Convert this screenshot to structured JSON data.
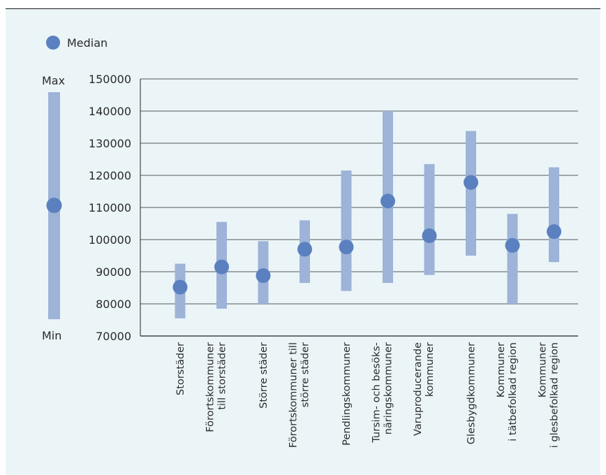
{
  "legend": {
    "median_label": "Median"
  },
  "key": {
    "max_label": "Max",
    "min_label": "Min"
  },
  "colors": {
    "background": "#ebf5f8",
    "range_bar": "#9db3d8",
    "median_dot": "#5b80bf",
    "grid": "#222222"
  },
  "chart_data": {
    "type": "range",
    "title": "",
    "xlabel": "",
    "ylabel": "",
    "ylim": [
      70000,
      150000
    ],
    "yticks": [
      70000,
      80000,
      90000,
      100000,
      110000,
      120000,
      130000,
      140000,
      150000
    ],
    "grid": true,
    "legend_position": "top-left",
    "categories": [
      {
        "label_lines": [
          "Storstäder"
        ],
        "min": 75500,
        "max": 92500,
        "median": 85200
      },
      {
        "label_lines": [
          "Förortskommuner",
          "till storstäder"
        ],
        "min": 78500,
        "max": 105500,
        "median": 91500
      },
      {
        "label_lines": [
          "Större städer"
        ],
        "min": 80000,
        "max": 99500,
        "median": 88800
      },
      {
        "label_lines": [
          "Förortskommuner till",
          "större städer"
        ],
        "min": 86500,
        "max": 106000,
        "median": 97000
      },
      {
        "label_lines": [
          "Pendlingskommuner"
        ],
        "min": 84000,
        "max": 121500,
        "median": 97700
      },
      {
        "label_lines": [
          "Tursim- och besöks-",
          "näringskommuner"
        ],
        "min": 86500,
        "max": 140000,
        "median": 112000
      },
      {
        "label_lines": [
          "Varuproducerande",
          "kommuner"
        ],
        "min": 89000,
        "max": 123500,
        "median": 101200
      },
      {
        "label_lines": [
          "Glesbygdkommuner"
        ],
        "min": 95000,
        "max": 133800,
        "median": 117800
      },
      {
        "label_lines": [
          "Kommuner",
          "i tätbefolkad region"
        ],
        "min": 80000,
        "max": 108000,
        "median": 98200
      },
      {
        "label_lines": [
          "Kommuner",
          "i glesbefolkad region"
        ],
        "min": 93000,
        "max": 122500,
        "median": 102500
      }
    ]
  }
}
